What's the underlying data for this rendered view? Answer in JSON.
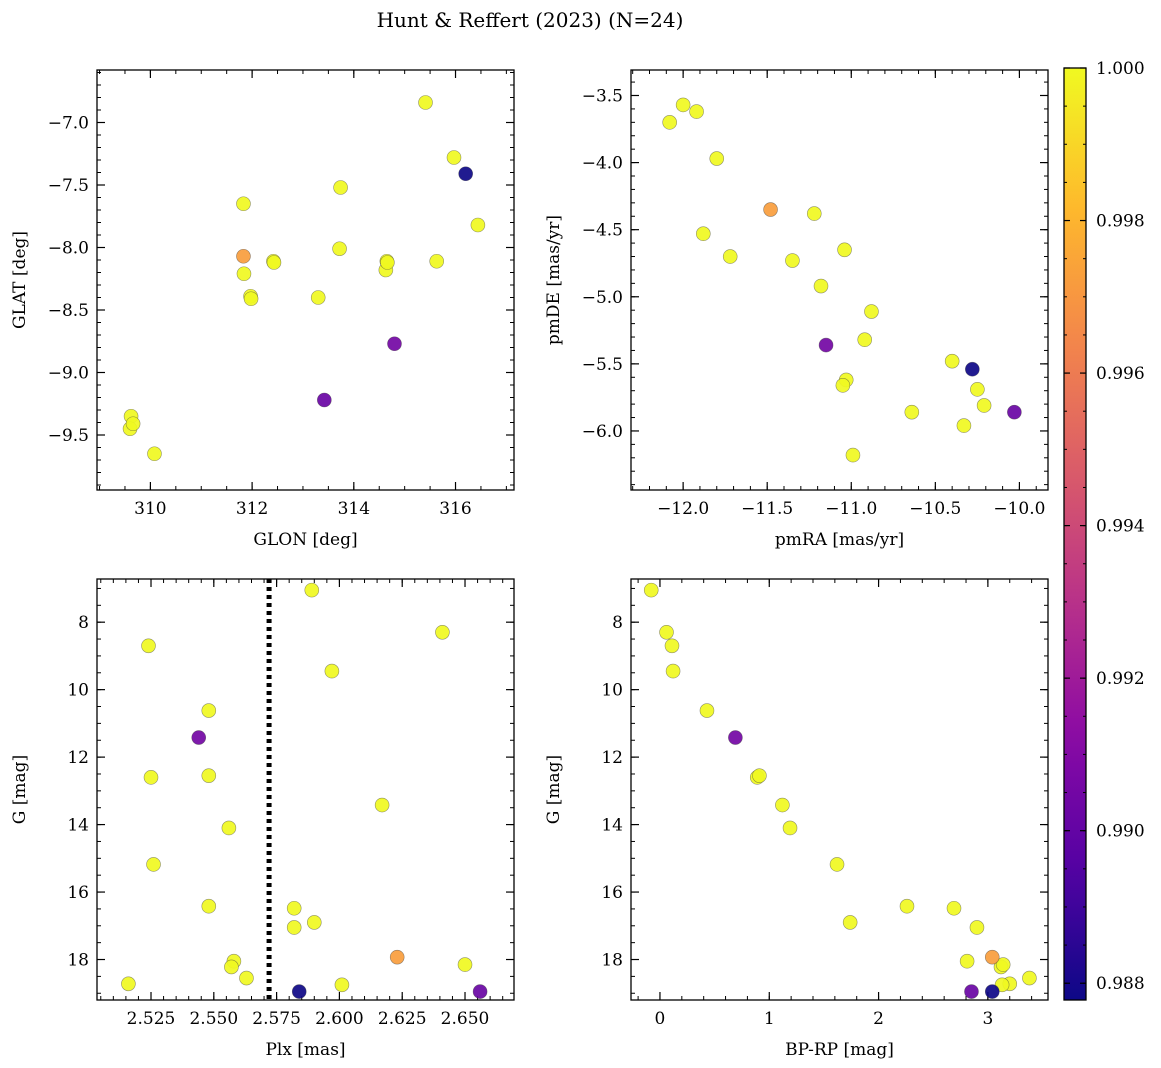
{
  "chart_data": {
    "title": "Hunt & Reffert (2023) (N=24)",
    "colorbar": {
      "colormap": "plasma",
      "range": [
        0.98778,
        1.0
      ],
      "ticks": [
        0.988,
        0.99,
        0.992,
        0.994,
        0.996,
        0.998,
        1.0
      ],
      "tick_labels": [
        "0.988",
        "0.990",
        "0.992",
        "0.994",
        "0.996",
        "0.998",
        "1.000"
      ]
    },
    "stars": [
      {
        "glon": 309.62,
        "glat": -9.35,
        "pmra": -12.08,
        "pmde": -3.7,
        "plx": 2.524,
        "g": 8.7,
        "bprp": 0.11,
        "prob": 1.0
      },
      {
        "glon": 309.6,
        "glat": -9.45,
        "pmra": -12.0,
        "pmde": -3.57,
        "plx": 2.597,
        "g": 9.45,
        "bprp": 0.12,
        "prob": 1.0
      },
      {
        "glon": 309.66,
        "glat": -9.41,
        "pmra": -11.92,
        "pmde": -3.62,
        "plx": 2.548,
        "g": 10.62,
        "bprp": 0.43,
        "prob": 1.0
      },
      {
        "glon": 310.08,
        "glat": -9.65,
        "pmra": -11.8,
        "pmde": -3.97,
        "plx": 2.525,
        "g": 12.6,
        "bprp": 0.89,
        "prob": 1.0
      },
      {
        "glon": 311.83,
        "glat": -7.65,
        "pmra": -11.88,
        "pmde": -4.53,
        "plx": 2.548,
        "g": 12.55,
        "bprp": 0.91,
        "prob": 1.0
      },
      {
        "glon": 311.84,
        "glat": -8.21,
        "pmra": -11.72,
        "pmde": -4.7,
        "plx": 2.556,
        "g": 14.1,
        "bprp": 1.19,
        "prob": 1.0
      },
      {
        "glon": 311.97,
        "glat": -8.39,
        "pmra": -11.22,
        "pmde": -4.38,
        "plx": 2.617,
        "g": 13.42,
        "bprp": 1.12,
        "prob": 1.0
      },
      {
        "glon": 311.98,
        "glat": -8.41,
        "pmra": -11.35,
        "pmde": -4.73,
        "plx": 2.526,
        "g": 15.18,
        "bprp": 1.62,
        "prob": 1.0
      },
      {
        "glon": 312.42,
        "glat": -8.11,
        "pmra": -11.18,
        "pmde": -4.92,
        "plx": 2.548,
        "g": 16.42,
        "bprp": 2.26,
        "prob": 1.0
      },
      {
        "glon": 312.43,
        "glat": -8.12,
        "pmra": -11.04,
        "pmde": -4.65,
        "plx": 2.582,
        "g": 16.48,
        "bprp": 2.69,
        "prob": 1.0
      },
      {
        "glon": 313.3,
        "glat": -8.4,
        "pmra": -10.88,
        "pmde": -5.11,
        "plx": 2.59,
        "g": 16.9,
        "bprp": 1.74,
        "prob": 1.0
      },
      {
        "glon": 313.74,
        "glat": -7.52,
        "pmra": -10.92,
        "pmde": -5.32,
        "plx": 2.582,
        "g": 17.05,
        "bprp": 2.9,
        "prob": 1.0
      },
      {
        "glon": 313.72,
        "glat": -8.01,
        "pmra": -11.03,
        "pmde": -5.62,
        "plx": 2.558,
        "g": 18.05,
        "bprp": 2.81,
        "prob": 1.0
      },
      {
        "glon": 314.63,
        "glat": -8.18,
        "pmra": -11.05,
        "pmde": -5.66,
        "plx": 2.557,
        "g": 18.22,
        "bprp": 3.12,
        "prob": 1.0
      },
      {
        "glon": 314.65,
        "glat": -8.11,
        "pmra": -10.4,
        "pmde": -5.48,
        "plx": 2.65,
        "g": 18.15,
        "bprp": 3.14,
        "prob": 1.0
      },
      {
        "glon": 314.66,
        "glat": -8.12,
        "pmra": -10.64,
        "pmde": -5.86,
        "plx": 2.563,
        "g": 18.55,
        "bprp": 3.38,
        "prob": 1.0
      },
      {
        "glon": 315.63,
        "glat": -8.11,
        "pmra": -10.25,
        "pmde": -5.69,
        "plx": 2.516,
        "g": 18.72,
        "bprp": 3.2,
        "prob": 1.0
      },
      {
        "glon": 315.97,
        "glat": -7.28,
        "pmra": -10.21,
        "pmde": -5.81,
        "plx": 2.601,
        "g": 18.75,
        "bprp": 3.13,
        "prob": 1.0
      },
      {
        "glon": 316.44,
        "glat": -7.82,
        "pmra": -10.33,
        "pmde": -5.96,
        "plx": 2.641,
        "g": 8.3,
        "bprp": 0.06,
        "prob": 1.0
      },
      {
        "glon": 315.41,
        "glat": -6.84,
        "pmra": -10.99,
        "pmde": -6.18,
        "plx": 2.589,
        "g": 7.05,
        "bprp": -0.08,
        "prob": 1.0
      },
      {
        "glon": 311.83,
        "glat": -8.07,
        "pmra": -11.48,
        "pmde": -4.35,
        "plx": 2.623,
        "g": 17.93,
        "bprp": 3.04,
        "prob": 0.9972
      },
      {
        "glon": 314.8,
        "glat": -8.77,
        "pmra": -11.15,
        "pmde": -5.36,
        "plx": 2.544,
        "g": 11.42,
        "bprp": 0.69,
        "prob": 0.9905
      },
      {
        "glon": 313.42,
        "glat": -9.22,
        "pmra": -10.03,
        "pmde": -5.86,
        "plx": 2.656,
        "g": 18.95,
        "bprp": 2.85,
        "prob": 0.9902
      },
      {
        "glon": 316.2,
        "glat": -7.41,
        "pmra": -10.28,
        "pmde": -5.54,
        "plx": 2.584,
        "g": 18.95,
        "bprp": 3.04,
        "prob": 0.9878
      }
    ],
    "panels": [
      {
        "name": "glon-glat",
        "type": "scatter",
        "x_key": "glon",
        "y_key": "glat",
        "xlabel": "GLON [deg]",
        "ylabel": "GLAT [deg]",
        "xlim": [
          308.95,
          317.15
        ],
        "ylim": [
          -9.94,
          -6.58
        ],
        "y_inverted": false,
        "xticks": [
          310,
          312,
          314,
          316
        ],
        "xtick_labels": [
          "310",
          "312",
          "314",
          "316"
        ],
        "yticks": [
          -9.5,
          -9.0,
          -8.5,
          -8.0,
          -7.5,
          -7.0
        ],
        "ytick_labels": [
          "−9.5",
          "−9.0",
          "−8.5",
          "−8.0",
          "−7.5",
          "−7.0"
        ],
        "xminor": 0.5,
        "yminor": 0.1
      },
      {
        "name": "pmra-pmde",
        "type": "scatter",
        "x_key": "pmra",
        "y_key": "pmde",
        "xlabel": "pmRA [mas/yr]",
        "ylabel": "pmDE [mas/yr]",
        "xlim": [
          -12.31,
          -9.83
        ],
        "ylim": [
          -6.44,
          -3.31
        ],
        "y_inverted": false,
        "xticks": [
          -12.0,
          -11.5,
          -11.0,
          -10.5,
          -10.0
        ],
        "xtick_labels": [
          "−12.0",
          "−11.5",
          "−11.0",
          "−10.5",
          "−10.0"
        ],
        "yticks": [
          -6.0,
          -5.5,
          -5.0,
          -4.5,
          -4.0,
          -3.5
        ],
        "ytick_labels": [
          "−6.0",
          "−5.5",
          "−5.0",
          "−4.5",
          "−4.0",
          "−3.5"
        ],
        "xminor": 0.1,
        "yminor": 0.1
      },
      {
        "name": "plx-g",
        "type": "scatter",
        "x_key": "plx",
        "y_key": "g",
        "xlabel": "Plx [mas]",
        "ylabel": "G [mag]",
        "xlim": [
          2.5035,
          2.6695
        ],
        "ylim": [
          19.2,
          6.72
        ],
        "y_inverted": true,
        "xticks": [
          2.525,
          2.55,
          2.575,
          2.6,
          2.625,
          2.65
        ],
        "xtick_labels": [
          "2.525",
          "2.550",
          "2.575",
          "2.600",
          "2.625",
          "2.650"
        ],
        "yticks": [
          8,
          10,
          12,
          14,
          16,
          18
        ],
        "ytick_labels": [
          "8",
          "10",
          "12",
          "14",
          "16",
          "18"
        ],
        "xminor": 0.005,
        "yminor": 0.5,
        "vline": {
          "x": 2.572,
          "style": "dotted"
        }
      },
      {
        "name": "bprp-g",
        "type": "scatter",
        "x_key": "bprp",
        "y_key": "g",
        "xlabel": "BP-RP [mag]",
        "ylabel": "G [mag]",
        "xlim": [
          -0.265,
          3.55
        ],
        "ylim": [
          19.2,
          6.72
        ],
        "y_inverted": true,
        "xticks": [
          0,
          1,
          2,
          3
        ],
        "xtick_labels": [
          "0",
          "1",
          "2",
          "3"
        ],
        "yticks": [
          8,
          10,
          12,
          14,
          16,
          18
        ],
        "ytick_labels": [
          "8",
          "10",
          "12",
          "14",
          "16",
          "18"
        ],
        "xminor": 0.2,
        "yminor": 0.5
      }
    ]
  }
}
